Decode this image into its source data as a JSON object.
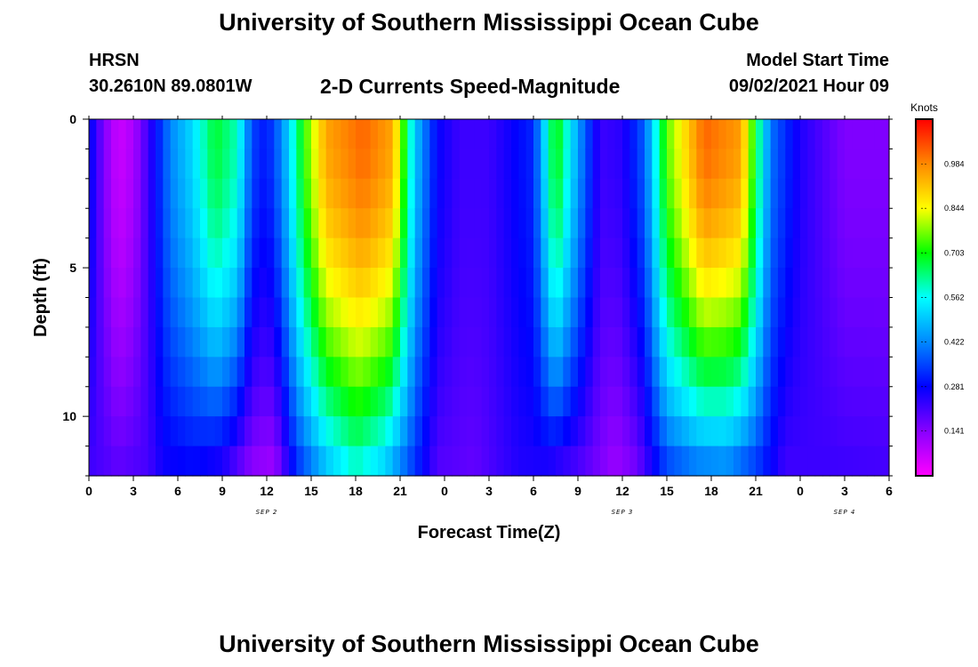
{
  "header": {
    "title": "University of Southern Mississippi Ocean Cube",
    "station": "HRSN",
    "coords": "30.2610N  89.0801W",
    "subtitle": "2-D Currents Speed-Magnitude",
    "model_label": "Model Start Time",
    "model_time": "09/02/2021 Hour 09"
  },
  "footer": {
    "title": "University of Southern Mississippi Ocean Cube"
  },
  "colors": {
    "background": "#ffffff",
    "text": "#000000"
  },
  "chart_data": {
    "type": "heatmap",
    "title": "2-D Currents Speed-Magnitude",
    "xlabel": "Forecast Time(Z)",
    "ylabel": "Depth (ft)",
    "x_range_hours": [
      0,
      54
    ],
    "ylim": [
      0,
      12
    ],
    "x_tick_labels": [
      "0",
      "3",
      "6",
      "9",
      "12",
      "15",
      "18",
      "21",
      "0",
      "3",
      "6",
      "9",
      "12",
      "15",
      "18",
      "21",
      "0",
      "3",
      "6"
    ],
    "y_tick_labels": [
      "0",
      "5",
      "10"
    ],
    "y_tick_values": [
      0,
      5,
      10
    ],
    "day_labels": [
      {
        "label": "SEP 2",
        "hour": 12
      },
      {
        "label": "SEP 3",
        "hour": 36
      },
      {
        "label": "SEP 4",
        "hour": 51
      }
    ],
    "colorbar": {
      "unit": "Knots",
      "min": 0.0,
      "max": 1.125,
      "tick_labels": [
        "0.141",
        "0.281",
        "0.422",
        "0.562",
        "0.703",
        "0.844",
        "0.984"
      ],
      "tick_values": [
        0.141,
        0.281,
        0.422,
        0.562,
        0.703,
        0.844,
        0.984
      ],
      "palette": [
        "#ff00ff",
        "#8800ff",
        "#0000ff",
        "#0088ff",
        "#00ffff",
        "#00ff00",
        "#ffff00",
        "#ff8800",
        "#ff0000"
      ]
    },
    "depth_levels_ft": [
      0.5,
      1.5,
      2.5,
      3.5,
      4.5,
      5.5,
      6.5,
      7.5,
      8.5,
      9.5,
      10.5,
      11.5
    ],
    "surface_speed_by_hour": [
      {
        "hour": 0,
        "speed": 0.3
      },
      {
        "hour": 1,
        "speed": 0.15
      },
      {
        "hour": 2,
        "speed": 0.06
      },
      {
        "hour": 3,
        "speed": 0.1
      },
      {
        "hour": 4,
        "speed": 0.22
      },
      {
        "hour": 5.5,
        "speed": 0.42
      },
      {
        "hour": 7,
        "speed": 0.52
      },
      {
        "hour": 8.5,
        "speed": 0.68
      },
      {
        "hour": 10,
        "speed": 0.6
      },
      {
        "hour": 11,
        "speed": 0.35
      },
      {
        "hour": 12,
        "speed": 0.3
      },
      {
        "hour": 13,
        "speed": 0.42
      },
      {
        "hour": 14.5,
        "speed": 0.72
      },
      {
        "hour": 16,
        "speed": 0.95
      },
      {
        "hour": 18.5,
        "speed": 1.02
      },
      {
        "hour": 20.5,
        "speed": 0.95
      },
      {
        "hour": 22,
        "speed": 0.5
      },
      {
        "hour": 23.5,
        "speed": 0.28
      },
      {
        "hour": 25,
        "speed": 0.22
      },
      {
        "hour": 27,
        "speed": 0.22
      },
      {
        "hour": 30,
        "speed": 0.32
      },
      {
        "hour": 31.5,
        "speed": 0.72
      },
      {
        "hour": 33,
        "speed": 0.45
      },
      {
        "hour": 34.5,
        "speed": 0.22
      },
      {
        "hour": 36,
        "speed": 0.24
      },
      {
        "hour": 37.5,
        "speed": 0.38
      },
      {
        "hour": 39,
        "speed": 0.75
      },
      {
        "hour": 41.5,
        "speed": 1.02
      },
      {
        "hour": 44,
        "speed": 0.96
      },
      {
        "hour": 46,
        "speed": 0.4
      },
      {
        "hour": 48,
        "speed": 0.25
      },
      {
        "hour": 51,
        "speed": 0.15
      },
      {
        "hour": 54,
        "speed": 0.15
      }
    ],
    "bottom_speed_by_hour": [
      {
        "hour": 0,
        "speed": 0.22
      },
      {
        "hour": 2,
        "speed": 0.18
      },
      {
        "hour": 4,
        "speed": 0.21
      },
      {
        "hour": 5,
        "speed": 0.27
      },
      {
        "hour": 7,
        "speed": 0.29
      },
      {
        "hour": 9,
        "speed": 0.26
      },
      {
        "hour": 11,
        "speed": 0.14
      },
      {
        "hour": 12.5,
        "speed": 0.12
      },
      {
        "hour": 14,
        "speed": 0.33
      },
      {
        "hour": 16,
        "speed": 0.5
      },
      {
        "hour": 18,
        "speed": 0.6
      },
      {
        "hour": 20,
        "speed": 0.52
      },
      {
        "hour": 21.5,
        "speed": 0.38
      },
      {
        "hour": 23.5,
        "speed": 0.2
      },
      {
        "hour": 26,
        "speed": 0.18
      },
      {
        "hour": 29,
        "speed": 0.25
      },
      {
        "hour": 31,
        "speed": 0.26
      },
      {
        "hour": 33,
        "speed": 0.21
      },
      {
        "hour": 35.5,
        "speed": 0.12
      },
      {
        "hour": 37,
        "speed": 0.17
      },
      {
        "hour": 39,
        "speed": 0.36
      },
      {
        "hour": 41,
        "speed": 0.42
      },
      {
        "hour": 43,
        "speed": 0.44
      },
      {
        "hour": 45,
        "speed": 0.35
      },
      {
        "hour": 47,
        "speed": 0.22
      },
      {
        "hour": 50,
        "speed": 0.22
      },
      {
        "hour": 54,
        "speed": 0.21
      }
    ]
  }
}
